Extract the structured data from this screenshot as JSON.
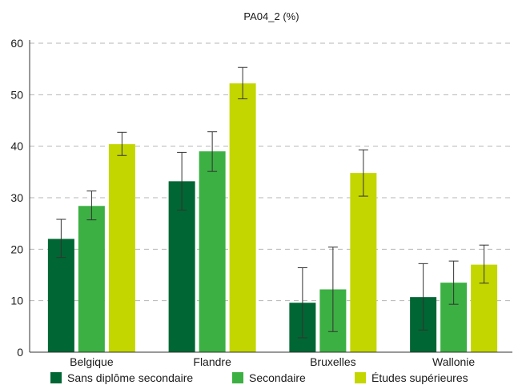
{
  "chart_data": {
    "type": "bar",
    "title": "PA04_2 (%)",
    "xlabel": "",
    "ylabel": "",
    "ylim": [
      0,
      60
    ],
    "yticks": [
      0,
      10,
      20,
      30,
      40,
      50,
      60
    ],
    "grid": "horizontal-dashed",
    "legend_position": "bottom",
    "categories": [
      "Belgique",
      "Flandre",
      "Bruxelles",
      "Wallonie"
    ],
    "series": [
      {
        "name": "Sans diplôme secondaire",
        "color": "#006633",
        "values": [
          22.0,
          33.2,
          9.6,
          10.7
        ],
        "error_low": [
          18.4,
          27.6,
          2.8,
          4.3
        ],
        "error_high": [
          25.8,
          38.8,
          16.4,
          17.2
        ]
      },
      {
        "name": "Secondaire",
        "color": "#3cb043",
        "values": [
          28.4,
          39.0,
          12.2,
          13.5
        ],
        "error_low": [
          25.7,
          35.1,
          4.0,
          9.3
        ],
        "error_high": [
          31.3,
          42.8,
          20.4,
          17.7
        ]
      },
      {
        "name": "Études supérieures",
        "color": "#c4d600",
        "values": [
          40.4,
          52.2,
          34.8,
          17.0
        ],
        "error_low": [
          38.2,
          49.2,
          30.3,
          13.4
        ],
        "error_high": [
          42.7,
          55.3,
          39.3,
          20.8
        ]
      }
    ]
  }
}
